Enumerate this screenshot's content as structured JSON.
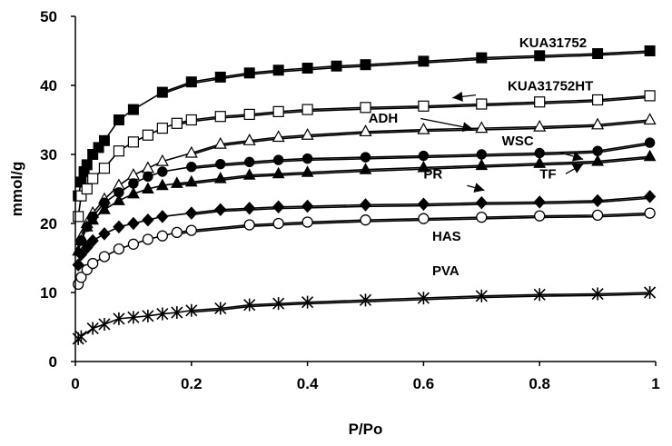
{
  "chart_data": {
    "type": "line",
    "title": "",
    "xlabel": "P/Po",
    "ylabel": "mmol/g",
    "xlim": [
      0,
      1
    ],
    "ylim": [
      0,
      50
    ],
    "x_ticks": [
      "0",
      "0.2",
      "0.4",
      "0.6",
      "0.8",
      "1"
    ],
    "y_ticks": [
      "0",
      "10",
      "20",
      "30",
      "40",
      "50"
    ],
    "grid": false,
    "series": [
      {
        "name": "KUA31752",
        "marker": "filled-square",
        "x": [
          0.005,
          0.01,
          0.015,
          0.02,
          0.03,
          0.04,
          0.05,
          0.075,
          0.1,
          0.15,
          0.2,
          0.25,
          0.3,
          0.35,
          0.4,
          0.45,
          0.5,
          0.6,
          0.7,
          0.8,
          0.9,
          0.99
        ],
        "y": [
          24,
          26,
          27.5,
          28.5,
          30,
          31,
          32,
          35,
          36.5,
          39,
          40.5,
          41.2,
          41.8,
          42.2,
          42.5,
          42.8,
          43,
          43.5,
          44,
          44.3,
          44.6,
          45
        ]
      },
      {
        "name": "KUA31752HT",
        "marker": "open-square",
        "x": [
          0.005,
          0.01,
          0.02,
          0.03,
          0.05,
          0.075,
          0.1,
          0.125,
          0.15,
          0.175,
          0.2,
          0.25,
          0.3,
          0.35,
          0.4,
          0.5,
          0.6,
          0.7,
          0.8,
          0.9,
          0.99
        ],
        "y": [
          21,
          24,
          25,
          26.5,
          28,
          30.5,
          31.8,
          32.8,
          33.8,
          34.5,
          35,
          35.5,
          35.8,
          36.2,
          36.5,
          36.8,
          37,
          37.3,
          37.6,
          37.9,
          38.5
        ]
      },
      {
        "name": "ADH",
        "marker": "open-triangle",
        "x": [
          0.01,
          0.02,
          0.03,
          0.05,
          0.075,
          0.1,
          0.125,
          0.15,
          0.2,
          0.25,
          0.3,
          0.35,
          0.4,
          0.5,
          0.6,
          0.7,
          0.8,
          0.9,
          0.99
        ],
        "y": [
          18,
          20,
          21.5,
          23.5,
          25.5,
          27,
          28,
          29,
          30.2,
          31.5,
          32,
          32.5,
          32.8,
          33.3,
          33.6,
          33.8,
          34,
          34.3,
          35
        ]
      },
      {
        "name": "WSC",
        "marker": "filled-circle",
        "x": [
          0.01,
          0.02,
          0.03,
          0.05,
          0.075,
          0.1,
          0.125,
          0.15,
          0.2,
          0.25,
          0.3,
          0.35,
          0.4,
          0.5,
          0.6,
          0.7,
          0.8,
          0.9,
          0.99
        ],
        "y": [
          17.5,
          19.5,
          21,
          23,
          24.5,
          25.8,
          26.8,
          27.5,
          28.2,
          28.6,
          28.9,
          29.2,
          29.4,
          29.6,
          29.8,
          30,
          30.2,
          30.5,
          31.7
        ]
      },
      {
        "name": "TF",
        "marker": "filled-triangle",
        "x": [
          0.005,
          0.01,
          0.02,
          0.03,
          0.05,
          0.075,
          0.1,
          0.125,
          0.15,
          0.175,
          0.2,
          0.25,
          0.3,
          0.35,
          0.4,
          0.5,
          0.6,
          0.7,
          0.8,
          0.9,
          0.99
        ],
        "y": [
          16,
          17.5,
          19.5,
          20.5,
          22,
          23.3,
          24.3,
          25,
          25.5,
          25.8,
          26,
          26.5,
          27,
          27.2,
          27.4,
          27.8,
          28.1,
          28.4,
          28.7,
          29,
          29.7
        ]
      },
      {
        "name": "HAS",
        "marker": "filled-diamond",
        "x": [
          0.005,
          0.01,
          0.02,
          0.03,
          0.05,
          0.075,
          0.1,
          0.125,
          0.15,
          0.2,
          0.25,
          0.3,
          0.35,
          0.4,
          0.5,
          0.6,
          0.7,
          0.8,
          0.9,
          0.99
        ],
        "y": [
          14,
          15.5,
          16.5,
          17.5,
          18.5,
          19.5,
          20,
          20.5,
          21,
          21.5,
          22,
          22.2,
          22.4,
          22.5,
          22.7,
          22.8,
          23,
          23.1,
          23.3,
          23.9
        ]
      },
      {
        "name": "PR",
        "marker": "open-circle",
        "x": [
          0.005,
          0.01,
          0.02,
          0.03,
          0.05,
          0.075,
          0.1,
          0.125,
          0.15,
          0.175,
          0.2,
          0.3,
          0.35,
          0.4,
          0.5,
          0.6,
          0.7,
          0.8,
          0.9,
          0.99
        ],
        "y": [
          11.2,
          12.2,
          13.3,
          14.2,
          15.2,
          16.3,
          17,
          17.7,
          18.2,
          18.7,
          19,
          19.8,
          20,
          20.2,
          20.5,
          20.7,
          20.9,
          21.1,
          21.2,
          21.5
        ]
      },
      {
        "name": "PVA",
        "marker": "star",
        "x": [
          0.005,
          0.01,
          0.03,
          0.05,
          0.075,
          0.1,
          0.125,
          0.15,
          0.175,
          0.2,
          0.25,
          0.3,
          0.35,
          0.4,
          0.5,
          0.6,
          0.7,
          0.8,
          0.9,
          0.99
        ],
        "y": [
          3.3,
          3.6,
          4.8,
          5.4,
          6.2,
          6.4,
          6.6,
          6.9,
          7.1,
          7.4,
          7.7,
          8.2,
          8.4,
          8.6,
          8.9,
          9.2,
          9.5,
          9.7,
          9.8,
          10
        ]
      }
    ],
    "labels": [
      {
        "text": "KUA31752",
        "x": 0.765,
        "y": 45.5
      },
      {
        "text": "KUA31752HT",
        "x": 0.745,
        "y": 39.3
      },
      {
        "text": "ADH",
        "x": 0.505,
        "y": 34.6
      },
      {
        "text": "WSC",
        "x": 0.735,
        "y": 31.3
      },
      {
        "text": "PR",
        "x": 0.6,
        "y": 26.5
      },
      {
        "text": "TF",
        "x": 0.8,
        "y": 26.5
      },
      {
        "text": "HAS",
        "x": 0.615,
        "y": 17.5
      },
      {
        "text": "PVA",
        "x": 0.615,
        "y": 12.5
      }
    ],
    "arrows": [
      {
        "from": [
          0.69,
          38.6
        ],
        "to": [
          0.65,
          38.2
        ]
      },
      {
        "from": [
          0.595,
          35.2
        ],
        "to": [
          0.685,
          33.7
        ]
      },
      {
        "from": [
          0.835,
          30.3
        ],
        "to": [
          0.875,
          29.3
        ]
      },
      {
        "from": [
          0.675,
          25.5
        ],
        "to": [
          0.705,
          24.8
        ]
      },
      {
        "from": [
          0.845,
          27.2
        ],
        "to": [
          0.875,
          28.6
        ]
      }
    ]
  }
}
